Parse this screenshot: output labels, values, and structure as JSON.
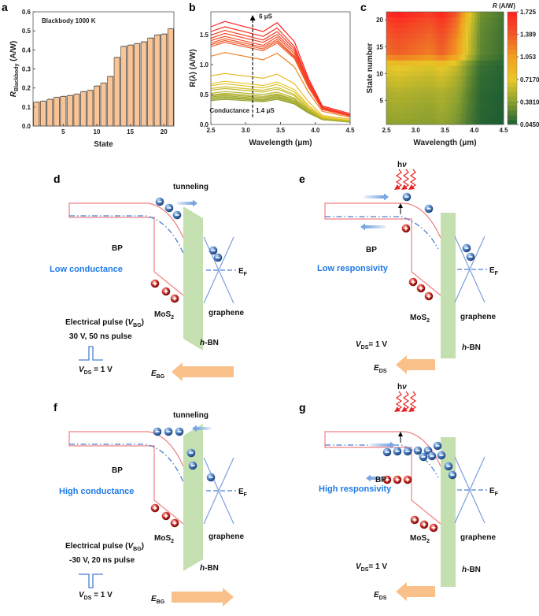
{
  "panels": {
    "a": "a",
    "b": "b",
    "c": "c",
    "d": "d",
    "e": "e",
    "f": "f",
    "g": "g"
  },
  "chart_data": [
    {
      "panel": "a",
      "type": "bar",
      "annotation": "Blackbody  1000 K",
      "xlabel": "State",
      "ylabel_main": "R",
      "ylabel_sub": "Blackbody",
      "ylabel_unit": " (A/W)",
      "categories": [
        1,
        2,
        3,
        4,
        5,
        6,
        7,
        8,
        9,
        10,
        11,
        12,
        13,
        14,
        15,
        16,
        17,
        18,
        19,
        20,
        21
      ],
      "values": [
        0.125,
        0.13,
        0.14,
        0.15,
        0.155,
        0.16,
        0.167,
        0.18,
        0.187,
        0.21,
        0.225,
        0.26,
        0.36,
        0.418,
        0.425,
        0.432,
        0.442,
        0.462,
        0.478,
        0.483,
        0.51
      ],
      "xlim": [
        0.5,
        21.5
      ],
      "ylim": [
        0,
        0.6
      ],
      "xticks": [
        "5",
        "10",
        "15",
        "20"
      ],
      "yticks": [
        "0.0",
        "0.1",
        "0.2",
        "0.3",
        "0.4",
        "0.5",
        "0.6"
      ],
      "bar_color": "#f9c596",
      "grid": false
    },
    {
      "panel": "b",
      "type": "line",
      "xlabel": "Wavelength (μm)",
      "ylabel": "R(λ) (A/W)",
      "xlim": [
        2.5,
        4.5
      ],
      "ylim": [
        0,
        1.88
      ],
      "xticks": [
        "2.5",
        "3.0",
        "3.5",
        "4.0",
        "4.5"
      ],
      "yticks": [
        "0.0",
        "0.5",
        "1.0",
        "1.5"
      ],
      "annotation_top": "6 μS",
      "annotation_bottom_left": "Conductance",
      "annotation_bottom_right": "1.4 μS",
      "x": [
        2.5,
        2.7,
        3.25,
        3.45,
        3.7,
        3.9,
        4.1,
        4.5
      ],
      "series": [
        {
          "values": [
            0.4,
            0.42,
            0.38,
            0.42,
            0.34,
            0.19,
            0.08,
            0.04
          ]
        },
        {
          "values": [
            0.42,
            0.44,
            0.4,
            0.44,
            0.35,
            0.2,
            0.08,
            0.04
          ]
        },
        {
          "values": [
            0.44,
            0.46,
            0.41,
            0.46,
            0.37,
            0.21,
            0.08,
            0.05
          ]
        },
        {
          "values": [
            0.46,
            0.48,
            0.43,
            0.48,
            0.38,
            0.22,
            0.09,
            0.05
          ]
        },
        {
          "values": [
            0.48,
            0.5,
            0.45,
            0.5,
            0.4,
            0.23,
            0.09,
            0.05
          ]
        },
        {
          "values": [
            0.49,
            0.52,
            0.47,
            0.51,
            0.42,
            0.23,
            0.09,
            0.05
          ]
        },
        {
          "values": [
            0.52,
            0.55,
            0.5,
            0.54,
            0.44,
            0.25,
            0.1,
            0.06
          ]
        },
        {
          "values": [
            0.57,
            0.6,
            0.54,
            0.59,
            0.48,
            0.27,
            0.11,
            0.06
          ]
        },
        {
          "values": [
            0.6,
            0.63,
            0.57,
            0.62,
            0.5,
            0.28,
            0.11,
            0.06
          ]
        },
        {
          "values": [
            0.65,
            0.68,
            0.61,
            0.67,
            0.54,
            0.31,
            0.12,
            0.07
          ]
        },
        {
          "values": [
            0.68,
            0.72,
            0.65,
            0.71,
            0.58,
            0.32,
            0.13,
            0.07
          ]
        },
        {
          "values": [
            0.81,
            0.85,
            0.77,
            0.84,
            0.68,
            0.38,
            0.15,
            0.09
          ]
        },
        {
          "values": [
            1.14,
            1.2,
            1.08,
            1.19,
            0.96,
            0.54,
            0.22,
            0.12
          ]
        },
        {
          "values": [
            1.3,
            1.37,
            1.23,
            1.36,
            1.1,
            0.62,
            0.25,
            0.14
          ]
        },
        {
          "values": [
            1.33,
            1.4,
            1.26,
            1.39,
            1.12,
            0.63,
            0.25,
            0.14
          ]
        },
        {
          "values": [
            1.36,
            1.43,
            1.29,
            1.42,
            1.14,
            0.64,
            0.26,
            0.14
          ]
        },
        {
          "values": [
            1.4,
            1.47,
            1.32,
            1.46,
            1.18,
            0.66,
            0.26,
            0.15
          ]
        },
        {
          "values": [
            1.44,
            1.52,
            1.37,
            1.5,
            1.22,
            0.68,
            0.27,
            0.15
          ]
        },
        {
          "values": [
            1.49,
            1.57,
            1.41,
            1.55,
            1.26,
            0.71,
            0.28,
            0.16
          ]
        },
        {
          "values": [
            1.55,
            1.63,
            1.47,
            1.61,
            1.3,
            0.73,
            0.29,
            0.16
          ]
        },
        {
          "values": [
            1.63,
            1.72,
            1.55,
            1.7,
            1.38,
            0.77,
            0.31,
            0.18
          ]
        }
      ],
      "grid": false
    },
    {
      "panel": "c",
      "type": "heatmap",
      "xlabel": "Wavelength (μm)",
      "ylabel": "State number",
      "xlim": [
        2.5,
        4.5
      ],
      "ylim": [
        0.5,
        21.5
      ],
      "xticks": [
        "2.5",
        "3.0",
        "3.5",
        "4.0",
        "4.5"
      ],
      "yticks": [
        "5",
        "10",
        "15",
        "20"
      ],
      "values_source": "panel b series (state 1-21)",
      "colorbar_title_main": "R",
      "colorbar_title_unit": " (A/W)",
      "colorbar_ticks": [
        "1.725",
        "1.389",
        "1.053",
        "0.7170",
        "0.3810",
        "0.04500"
      ],
      "colorbar_range": [
        0.045,
        1.725
      ],
      "colormap": [
        "#1e5e32",
        "#8aa030",
        "#e8c828",
        "#f0a020",
        "#f05a28",
        "#ff2020"
      ]
    }
  ],
  "diagrams": {
    "d": {
      "tunneling": "tunneling",
      "bp": "BP",
      "state": "Low conductance",
      "mos": "MoS",
      "mos_sub": "2",
      "graphene": "graphene",
      "hbn_i": "h",
      "hbn": "-BN",
      "ef": "E",
      "ef_sub": "F",
      "pulse_title": "Electrical pulse (",
      "pulse_v": "V",
      "pulse_sub": "BG",
      "pulse_close": ")",
      "pulse_params": "30 V, 50 ns  pulse",
      "vds": "V",
      "vds_sub": "DS",
      "vds_val": " = 1 V",
      "field": "E",
      "field_sub": "BG"
    },
    "e": {
      "hv_h": "h",
      "hv_nu": "ν",
      "bp": "BP",
      "state": "Low responsivity",
      "mos": "MoS",
      "mos_sub": "2",
      "graphene": "graphene",
      "hbn_i": "h",
      "hbn": "-BN",
      "ef": "E",
      "ef_sub": "F",
      "vds": "V",
      "vds_sub": "DS",
      "vds_val": "= 1 V",
      "field": "E",
      "field_sub": "DS"
    },
    "f": {
      "tunneling": "tunneling",
      "bp": "BP",
      "state": "High conductance",
      "mos": "MoS",
      "mos_sub": "2",
      "graphene": "graphene",
      "hbn_i": "h",
      "hbn": "-BN",
      "ef": "E",
      "ef_sub": "F",
      "pulse_title": "Electrical pulse (",
      "pulse_v": "V",
      "pulse_sub": "BG",
      "pulse_close": ")",
      "pulse_params": "-30 V, 20 ns  pulse",
      "vds": "V",
      "vds_sub": "DS",
      "vds_val": " = 1 V",
      "field": "E",
      "field_sub": "BG"
    },
    "g": {
      "hv_h": "h",
      "hv_nu": "ν",
      "bp": "BP",
      "state": "High responsivity",
      "mos": "MoS",
      "mos_sub": "2",
      "graphene": "graphene",
      "hbn_i": "h",
      "hbn": "-BN",
      "ef": "E",
      "ef_sub": "F",
      "vds": "V",
      "vds_sub": "DS",
      "vds_val": "= 1 V",
      "field": "E",
      "field_sub": "DS"
    }
  },
  "colors": {
    "band": "#f08080",
    "fermi": "#4a7fd0",
    "hbn": "#c5e0b0",
    "field_arrow": "#f9c08a",
    "state_text": "#1f7ae8",
    "photon": "#e82020",
    "electron": "#3a6fb5",
    "hole": "#c0201e"
  }
}
